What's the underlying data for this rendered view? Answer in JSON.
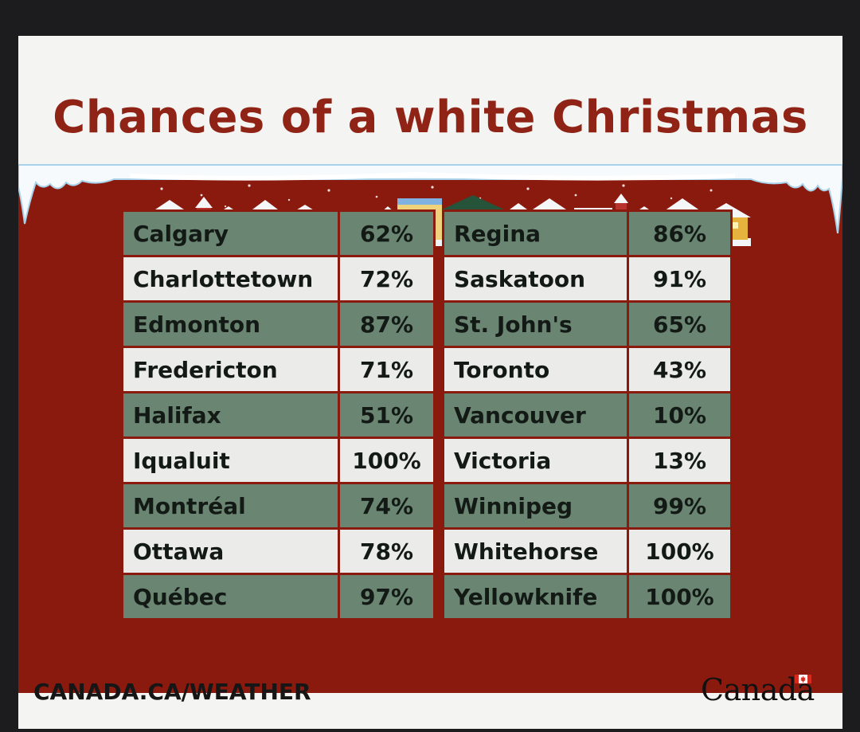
{
  "title": "Chances of a white Christmas",
  "footer": {
    "link": "CANADA.CA/WEATHER",
    "wordmark": "Canada"
  },
  "table_left": [
    {
      "city": "Calgary",
      "pct": "62%"
    },
    {
      "city": "Charlottetown",
      "pct": "72%"
    },
    {
      "city": "Edmonton",
      "pct": "87%"
    },
    {
      "city": "Fredericton",
      "pct": "71%"
    },
    {
      "city": "Halifax",
      "pct": "51%"
    },
    {
      "city": "Iqualuit",
      "pct": "100%"
    },
    {
      "city": "Montréal",
      "pct": "74%"
    },
    {
      "city": "Ottawa",
      "pct": "78%"
    },
    {
      "city": "Québec",
      "pct": "97%"
    }
  ],
  "table_right": [
    {
      "city": "Regina",
      "pct": "86%"
    },
    {
      "city": "Saskatoon",
      "pct": "91%"
    },
    {
      "city": "St. John's",
      "pct": "65%"
    },
    {
      "city": "Toronto",
      "pct": "43%"
    },
    {
      "city": "Vancouver",
      "pct": "10%"
    },
    {
      "city": "Victoria",
      "pct": "13%"
    },
    {
      "city": "Winnipeg",
      "pct": "99%"
    },
    {
      "city": "Whitehorse",
      "pct": "100%"
    },
    {
      "city": "Yellowknife",
      "pct": "100%"
    }
  ],
  "colors": {
    "title": "#8f2416",
    "panel_red": "#8b1a0e",
    "row_green": "#6a8571",
    "row_light": "#ebebea",
    "card_bg": "#f4f4f2",
    "frame": "#1c1c1e"
  },
  "icons": [
    "snow-icicles-icon",
    "village-houses-icon",
    "canada-flag-icon"
  ]
}
